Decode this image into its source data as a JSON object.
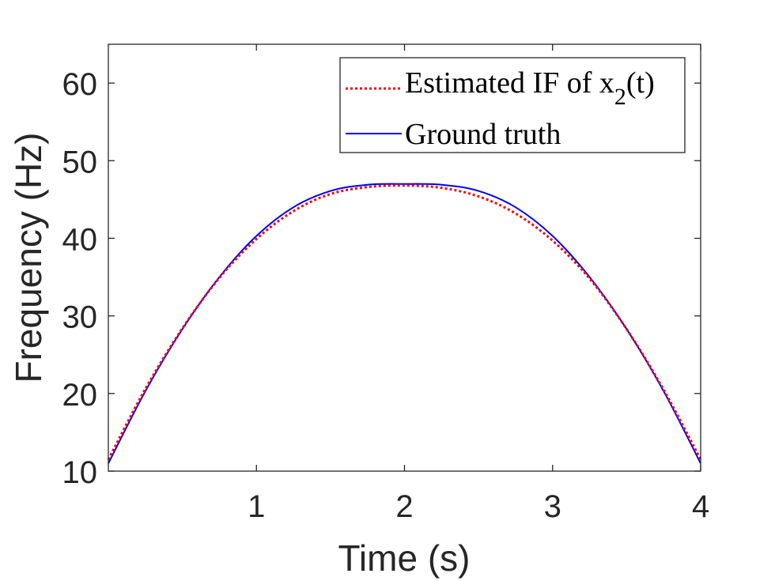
{
  "chart_data": {
    "type": "line",
    "title": "",
    "xlabel": "Time (s)",
    "ylabel": "Frequency (Hz)",
    "xlim": [
      0,
      4
    ],
    "ylim": [
      10,
      65
    ],
    "xticks": [
      1,
      2,
      3,
      4
    ],
    "yticks": [
      10,
      20,
      30,
      40,
      50,
      60
    ],
    "grid": false,
    "legend_position": "top-right",
    "legend": {
      "estimated_prefix": "Estimated IF of x",
      "estimated_sub": "2",
      "estimated_suffix": "(t)",
      "ground_truth": "Ground truth"
    },
    "series": [
      {
        "name": "Estimated IF of x2(t)",
        "color": "#ff0000",
        "style": "dotted",
        "x": [
          0,
          0.25,
          0.5,
          0.75,
          1.0,
          1.25,
          1.5,
          1.75,
          2.0,
          2.25,
          2.5,
          2.75,
          3.0,
          3.25,
          3.5,
          3.75,
          4.0
        ],
        "y": [
          11.5,
          20.6,
          28.4,
          34.9,
          39.9,
          43.5,
          45.7,
          46.6,
          46.8,
          46.5,
          45.4,
          43.2,
          39.7,
          34.8,
          28.3,
          20.5,
          11.5
        ]
      },
      {
        "name": "Ground truth",
        "color": "#0000ff",
        "style": "solid",
        "x": [
          0,
          0.25,
          0.5,
          0.75,
          1.0,
          1.25,
          1.5,
          1.75,
          2.0,
          2.25,
          2.5,
          2.75,
          3.0,
          3.25,
          3.5,
          3.75,
          4.0
        ],
        "y": [
          11.0,
          20.3,
          28.3,
          35.0,
          40.3,
          44.0,
          46.1,
          46.9,
          47.0,
          46.9,
          46.1,
          44.0,
          40.3,
          35.0,
          28.3,
          20.3,
          11.0
        ]
      }
    ]
  }
}
